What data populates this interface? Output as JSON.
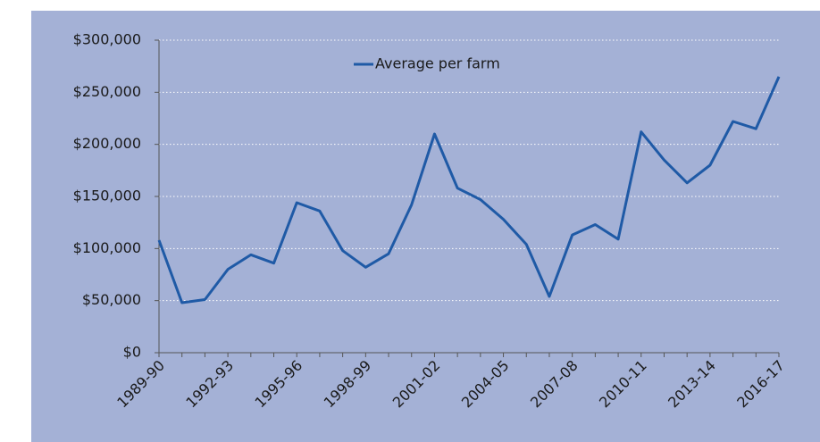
{
  "chart_data": {
    "type": "line",
    "categories": [
      "1989-90",
      null,
      null,
      "1992-93",
      null,
      null,
      "1995-96",
      null,
      null,
      "1998-99",
      null,
      null,
      "2001-02",
      null,
      null,
      "2004-05",
      null,
      null,
      "2007-08",
      null,
      null,
      "2010-11",
      null,
      null,
      "2013-14",
      null,
      null,
      "2016-17"
    ],
    "series": [
      {
        "name": "Average per farm",
        "color": "#1f5aa6",
        "values": [
          108000,
          48000,
          51000,
          80000,
          94000,
          86000,
          144000,
          136000,
          98000,
          82000,
          95000,
          142000,
          210000,
          158000,
          147000,
          128000,
          104000,
          54000,
          113000,
          123000,
          109000,
          212000,
          185000,
          163000,
          180000,
          222000,
          215000,
          265000
        ]
      }
    ],
    "ylim": [
      0,
      300000
    ],
    "yticks": [
      {
        "value": 0,
        "label": "$0"
      },
      {
        "value": 50000,
        "label": "$50,000"
      },
      {
        "value": 100000,
        "label": "$100,000"
      },
      {
        "value": 150000,
        "label": "$150,000"
      },
      {
        "value": 200000,
        "label": "$200,000"
      },
      {
        "value": 250000,
        "label": "$250,000"
      },
      {
        "value": 300000,
        "label": "$300,000"
      }
    ],
    "grid": true
  }
}
